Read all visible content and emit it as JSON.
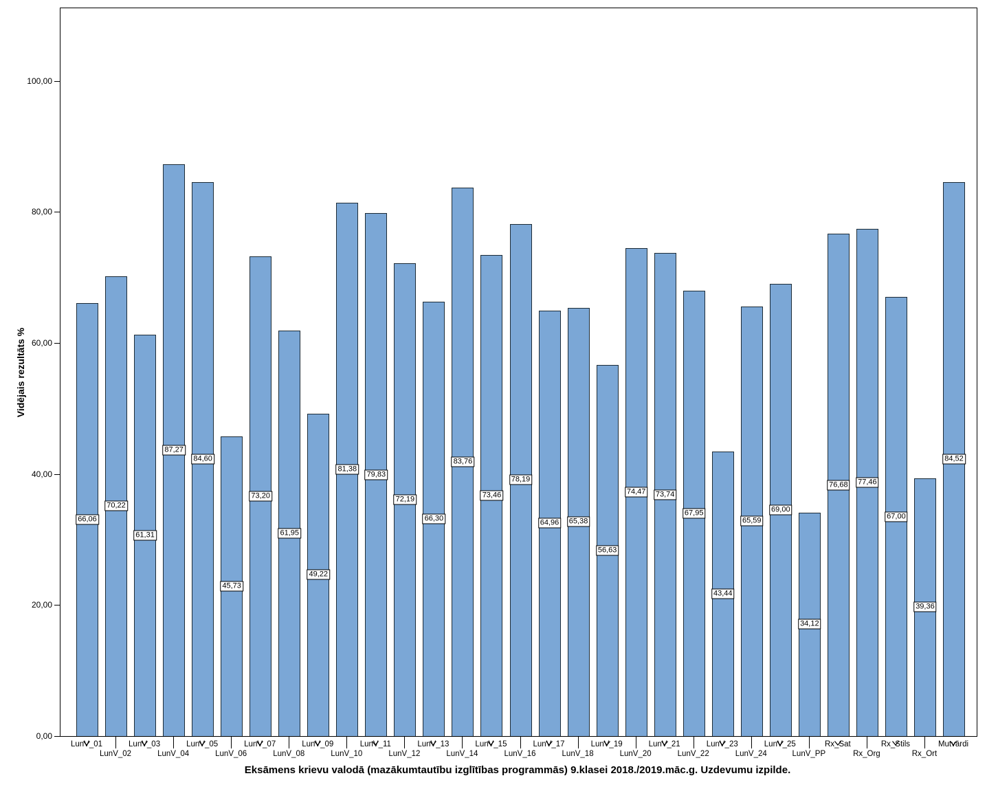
{
  "figure": {
    "background_color": "#ffffff",
    "bar_fill_color": "#7BA7D6",
    "bar_border_color": "#1c2b36",
    "frame_color": "#000000"
  },
  "chart_data": {
    "type": "bar",
    "title": "Eksāmens krievu valodā (mazākumtautību izglītības programmās) 9.klasei 2018./2019.māc.g. Uzdevumu izpilde.",
    "xlabel": "",
    "ylabel": "Vidējais rezultāts %",
    "categories": [
      "LunV_01",
      "LunV_02",
      "LunV_03",
      "LunV_04",
      "LunV_05",
      "LunV_06",
      "LunV_07",
      "LunV_08",
      "LunV_09",
      "LunV_10",
      "LunV_11",
      "LunV_12",
      "LunV_13",
      "LunV_14",
      "LunV_15",
      "LunV_16",
      "LunV_17",
      "LunV_18",
      "LunV_19",
      "LunV_20",
      "LunV_21",
      "LunV_22",
      "LunV_23",
      "LunV_24",
      "LunV_25",
      "LunV_PP",
      "Rx_Sat",
      "Rx_Org",
      "Rx_Stils",
      "Rx_Ort",
      "Mutvārdi"
    ],
    "values": [
      66.06,
      70.22,
      61.31,
      87.27,
      84.6,
      45.73,
      73.2,
      61.95,
      49.22,
      81.38,
      79.83,
      72.19,
      66.3,
      83.76,
      73.46,
      78.19,
      64.96,
      65.38,
      56.63,
      74.47,
      73.74,
      67.95,
      43.44,
      65.59,
      69.0,
      34.12,
      76.68,
      77.46,
      67.0,
      39.36,
      84.52
    ],
    "value_labels": [
      "66,06",
      "70,22",
      "61,31",
      "87,27",
      "84,60",
      "45,73",
      "73,20",
      "61,95",
      "49,22",
      "81,38",
      "79,83",
      "72,19",
      "66,30",
      "83,76",
      "73,46",
      "78,19",
      "64,96",
      "65,38",
      "56,63",
      "74,47",
      "73,74",
      "67,95",
      "43,44",
      "65,59",
      "69,00",
      "34,12",
      "76,68",
      "77,46",
      "67,00",
      "39,36",
      "84,52"
    ],
    "ytick_values": [
      0,
      20,
      40,
      60,
      80,
      100
    ],
    "ytick_labels": [
      "0,00",
      "20,00",
      "40,00",
      "60,00",
      "80,00",
      "100,00"
    ],
    "ylim": [
      0,
      111.1
    ],
    "grid": false,
    "legend": null,
    "value_label_position": "middle-of-bar",
    "xtick_label_layout": "staggered-two-rows"
  }
}
